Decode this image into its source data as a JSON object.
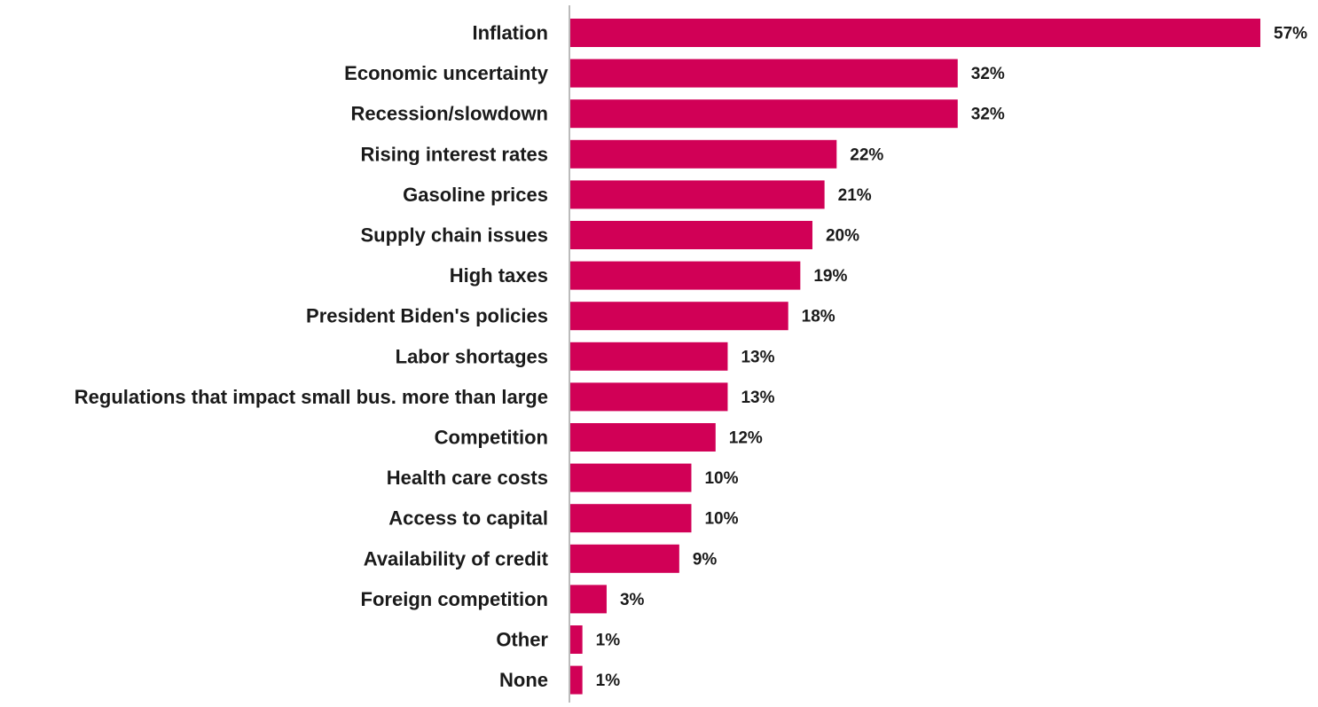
{
  "chart_data": {
    "type": "bar",
    "orientation": "horizontal",
    "title": "",
    "xlabel": "",
    "ylabel": "",
    "categories": [
      "Inflation",
      "Economic uncertainty",
      "Recession/slowdown",
      "Rising interest rates",
      "Gasoline prices",
      "Supply chain issues",
      "High taxes",
      "President Biden's policies",
      "Labor shortages",
      "Regulations that impact small bus. more than large",
      "Competition",
      "Health care costs",
      "Access to capital",
      "Availability of credit",
      "Foreign competition",
      "Other",
      "None"
    ],
    "values": [
      57,
      32,
      32,
      22,
      21,
      20,
      19,
      18,
      13,
      13,
      12,
      10,
      10,
      9,
      3,
      1,
      1
    ],
    "value_labels": [
      "57%",
      "32%",
      "32%",
      "22%",
      "21%",
      "20%",
      "19%",
      "18%",
      "13%",
      "13%",
      "12%",
      "10%",
      "10%",
      "9%",
      "3%",
      "1%",
      "1%"
    ],
    "xlim": [
      0,
      57
    ],
    "grid": false,
    "legend": "none",
    "bar_color": "#d10056",
    "axis_color": "#bbbbbb",
    "text_color": "#1a1a1a"
  }
}
